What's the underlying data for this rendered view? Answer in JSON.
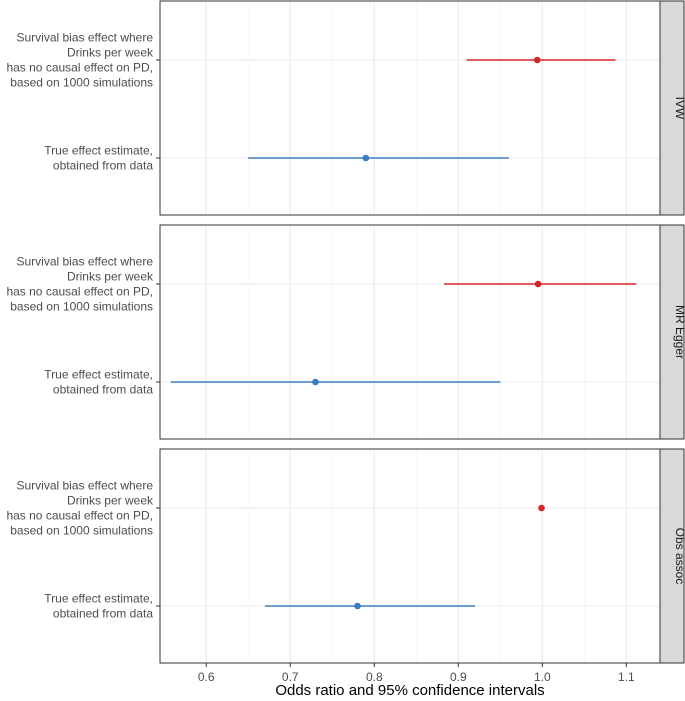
{
  "chart_data": {
    "type": "forest",
    "xlabel": "Odds ratio and 95% confidence intervals",
    "xlim": [
      0.545,
      1.14
    ],
    "xticks": [
      0.6,
      0.7,
      0.8,
      0.9,
      1.0,
      1.1
    ],
    "xtick_labels": [
      "0.6",
      "0.7",
      "0.8",
      "0.9",
      "1.0",
      "1.1"
    ],
    "categories": [
      {
        "key": "survival",
        "label_lines": [
          "Survival bias effect where",
          "Drinks per week",
          "has no causal effect on PD,",
          "based on 1000 simulations"
        ]
      },
      {
        "key": "true",
        "label_lines": [
          "True effect estimate,",
          "obtained from data"
        ]
      }
    ],
    "colors": {
      "survival": "#d62728",
      "true": "#3a7dc0"
    },
    "panels": [
      {
        "name": "IVW",
        "rows": [
          {
            "category": "survival",
            "estimate": 0.994,
            "lower": 0.91,
            "upper": 1.087
          },
          {
            "category": "true",
            "estimate": 0.79,
            "lower": 0.65,
            "upper": 0.96
          }
        ]
      },
      {
        "name": "MR Egger",
        "rows": [
          {
            "category": "survival",
            "estimate": 0.995,
            "lower": 0.883,
            "upper": 1.112
          },
          {
            "category": "true",
            "estimate": 0.73,
            "lower": 0.558,
            "upper": 0.95
          }
        ]
      },
      {
        "name": "Obs assoc",
        "rows": [
          {
            "category": "survival",
            "estimate": 0.999,
            "lower": 0.999,
            "upper": 0.999
          },
          {
            "category": "true",
            "estimate": 0.78,
            "lower": 0.67,
            "upper": 0.92
          }
        ]
      }
    ]
  }
}
